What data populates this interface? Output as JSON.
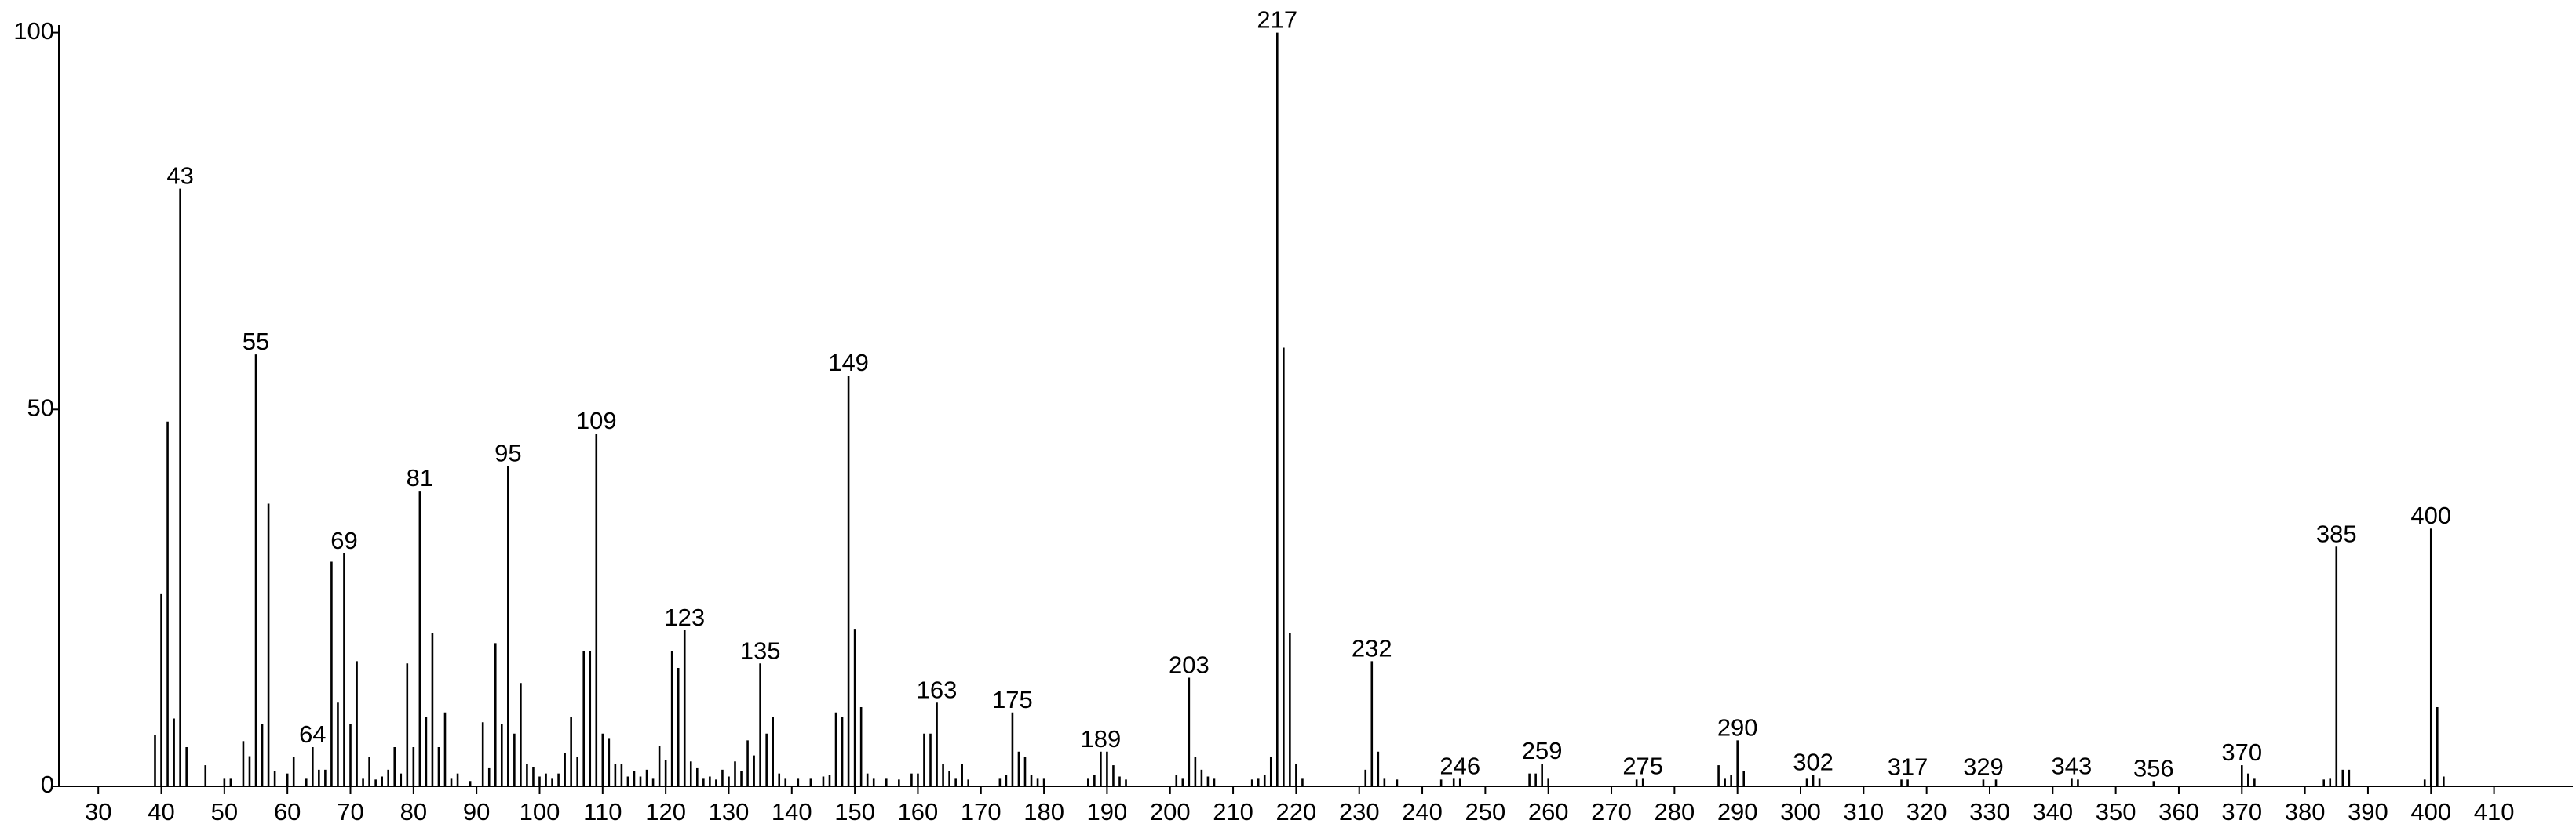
{
  "chart_data": {
    "type": "stem",
    "color": "#000000",
    "x": [
      39,
      40,
      41,
      42,
      43,
      44,
      47,
      50,
      51,
      53,
      54,
      55,
      56,
      57,
      58,
      60,
      61,
      63,
      64,
      65,
      66,
      67,
      68,
      69,
      70,
      71,
      72,
      73,
      74,
      75,
      76,
      77,
      78,
      79,
      80,
      81,
      82,
      83,
      84,
      85,
      86,
      87,
      89,
      91,
      92,
      93,
      94,
      95,
      96,
      97,
      98,
      99,
      100,
      101,
      102,
      103,
      104,
      105,
      106,
      107,
      108,
      109,
      110,
      111,
      112,
      113,
      114,
      115,
      116,
      117,
      118,
      119,
      120,
      121,
      122,
      123,
      124,
      125,
      126,
      127,
      128,
      129,
      130,
      131,
      132,
      133,
      134,
      135,
      136,
      137,
      138,
      139,
      141,
      143,
      145,
      146,
      147,
      148,
      149,
      150,
      151,
      152,
      153,
      155,
      157,
      159,
      160,
      161,
      162,
      163,
      164,
      165,
      166,
      167,
      168,
      173,
      174,
      175,
      176,
      177,
      178,
      179,
      180,
      187,
      188,
      189,
      190,
      191,
      192,
      193,
      201,
      202,
      203,
      204,
      205,
      206,
      207,
      213,
      214,
      215,
      216,
      217,
      218,
      219,
      220,
      221,
      231,
      232,
      233,
      234,
      236,
      243,
      245,
      246,
      257,
      258,
      259,
      260,
      274,
      275,
      287,
      288,
      289,
      290,
      291,
      301,
      302,
      303,
      316,
      317,
      329,
      331,
      343,
      344,
      356,
      370,
      371,
      372,
      383,
      384,
      385,
      386,
      387,
      399,
      400,
      401,
      402
    ],
    "values": [
      6.8,
      25.5,
      48.4,
      9,
      79.3,
      5.2,
      2.8,
      1,
      1,
      6,
      4,
      57.3,
      8.3,
      37.5,
      2,
      1.7,
      3.9,
      1,
      5.2,
      2.2,
      2.2,
      29.8,
      11.1,
      30.9,
      8.3,
      16.6,
      1,
      3.9,
      0.9,
      1.3,
      2.2,
      5.2,
      1.7,
      16.3,
      5.2,
      39.2,
      9.2,
      20.3,
      5.2,
      9.8,
      1,
      1.7,
      0.7,
      8.5,
      2.4,
      19,
      8.3,
      42.5,
      7,
      13.7,
      3,
      2.6,
      1.3,
      1.7,
      1,
      1.7,
      4.4,
      9.2,
      3.9,
      17.9,
      17.9,
      46.8,
      7,
      6.3,
      3,
      3,
      1.3,
      2,
      1.3,
      2.2,
      1,
      5.4,
      3.5,
      17.9,
      15.7,
      20.7,
      3.3,
      2.4,
      1,
      1.3,
      0.9,
      2.2,
      1.3,
      3.3,
      2,
      6.1,
      4.1,
      16.3,
      7,
      9.2,
      1.7,
      1,
      1,
      1,
      1.3,
      1.5,
      9.8,
      9.2,
      54.5,
      20.9,
      10.5,
      1.7,
      1,
      1,
      0.9,
      1.7,
      1.7,
      7,
      7,
      11.1,
      3,
      2,
      1,
      3,
      0.9,
      1,
      1.5,
      9.8,
      4.6,
      3.9,
      1.5,
      1,
      1,
      1,
      1.5,
      4.6,
      4.6,
      2.8,
      1.3,
      0.9,
      1.5,
      1,
      14.4,
      3.9,
      2.2,
      1.3,
      1,
      0.9,
      1,
      1.5,
      3.9,
      100,
      58.2,
      20.3,
      3,
      1,
      2.2,
      16.6,
      4.6,
      1,
      0.9,
      0.9,
      1,
      1,
      1.7,
      1.7,
      3,
      1,
      0.9,
      1,
      2.8,
      1,
      1.5,
      6.1,
      2,
      1,
      1.5,
      1,
      0.9,
      0.9,
      0.9,
      0.9,
      1,
      0.9,
      0.7,
      2.8,
      1.7,
      1,
      0.9,
      1,
      31.8,
      2.2,
      2.2,
      0.9,
      34.2,
      10.5,
      1.3
    ],
    "peak_labels": [
      43,
      55,
      64,
      69,
      81,
      95,
      109,
      123,
      135,
      149,
      163,
      175,
      189,
      203,
      217,
      232,
      246,
      259,
      275,
      290,
      302,
      317,
      329,
      343,
      356,
      370,
      385,
      400
    ],
    "xlim": [
      23.75,
      422.5
    ],
    "xticks": [
      30,
      40,
      50,
      60,
      70,
      80,
      90,
      100,
      110,
      120,
      130,
      140,
      150,
      160,
      170,
      180,
      190,
      200,
      210,
      220,
      230,
      240,
      250,
      260,
      270,
      280,
      290,
      300,
      310,
      320,
      330,
      340,
      350,
      360,
      370,
      380,
      390,
      400,
      410
    ],
    "ylim": [
      0,
      101
    ],
    "yticks": [
      0,
      50,
      100
    ]
  }
}
